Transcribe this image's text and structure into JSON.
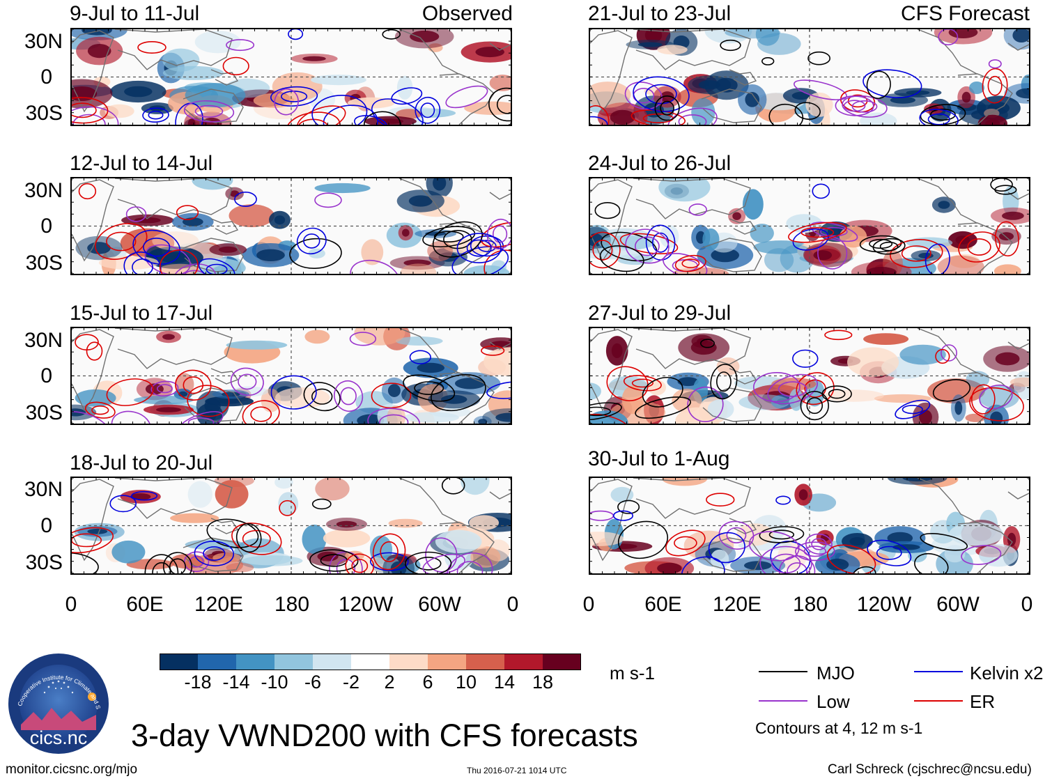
{
  "panels": [
    {
      "title": "9-Jul to 11-Jul",
      "tag": "Observed",
      "seed": 11
    },
    {
      "title": "21-Jul to 23-Jul",
      "tag": "CFS Forecast",
      "seed": 23
    },
    {
      "title": "12-Jul to 14-Jul",
      "tag": "",
      "seed": 37
    },
    {
      "title": "24-Jul to 26-Jul",
      "tag": "",
      "seed": 41
    },
    {
      "title": "15-Jul to 17-Jul",
      "tag": "",
      "seed": 53
    },
    {
      "title": "27-Jul to 29-Jul",
      "tag": "",
      "seed": 67
    },
    {
      "title": "18-Jul to 20-Jul",
      "tag": "",
      "seed": 71
    },
    {
      "title": "30-Jul to 1-Aug",
      "tag": "",
      "seed": 89
    }
  ],
  "lat_labels": [
    "30N",
    "0",
    "30S"
  ],
  "lon_labels": [
    "0",
    "60E",
    "120E",
    "180",
    "120W",
    "60W",
    "0"
  ],
  "colorbar": {
    "ticks": [
      "-18",
      "-14",
      "-10",
      "-6",
      "-2",
      "2",
      "6",
      "10",
      "14",
      "18"
    ],
    "colors": [
      "#053061",
      "#2166ac",
      "#4393c3",
      "#92c5de",
      "#d1e5f0",
      "#ffffff",
      "#fddbc7",
      "#f4a582",
      "#d6604d",
      "#b2182b",
      "#67001f"
    ],
    "units": "m s-1"
  },
  "legend": {
    "items": [
      {
        "label": "MJO",
        "color": "#000000"
      },
      {
        "label": "Kelvin x2",
        "color": "#0000dd"
      },
      {
        "label": "Low",
        "color": "#9933cc"
      },
      {
        "label": "ER",
        "color": "#dd0000"
      }
    ],
    "note": "Contours at 4, 12 m s-1"
  },
  "logo": {
    "name": "cics.nc",
    "ring_text": "Cooperative Institute for Climate and Satellites"
  },
  "main_title": "3-day VWND200 with CFS forecasts",
  "footer": {
    "left": "monitor.cicsnc.org/mjo",
    "center": "Thu 2016-07-21 1014 UTC",
    "right": "Carl Schreck (cjschrec@ncsu.edu)"
  }
}
